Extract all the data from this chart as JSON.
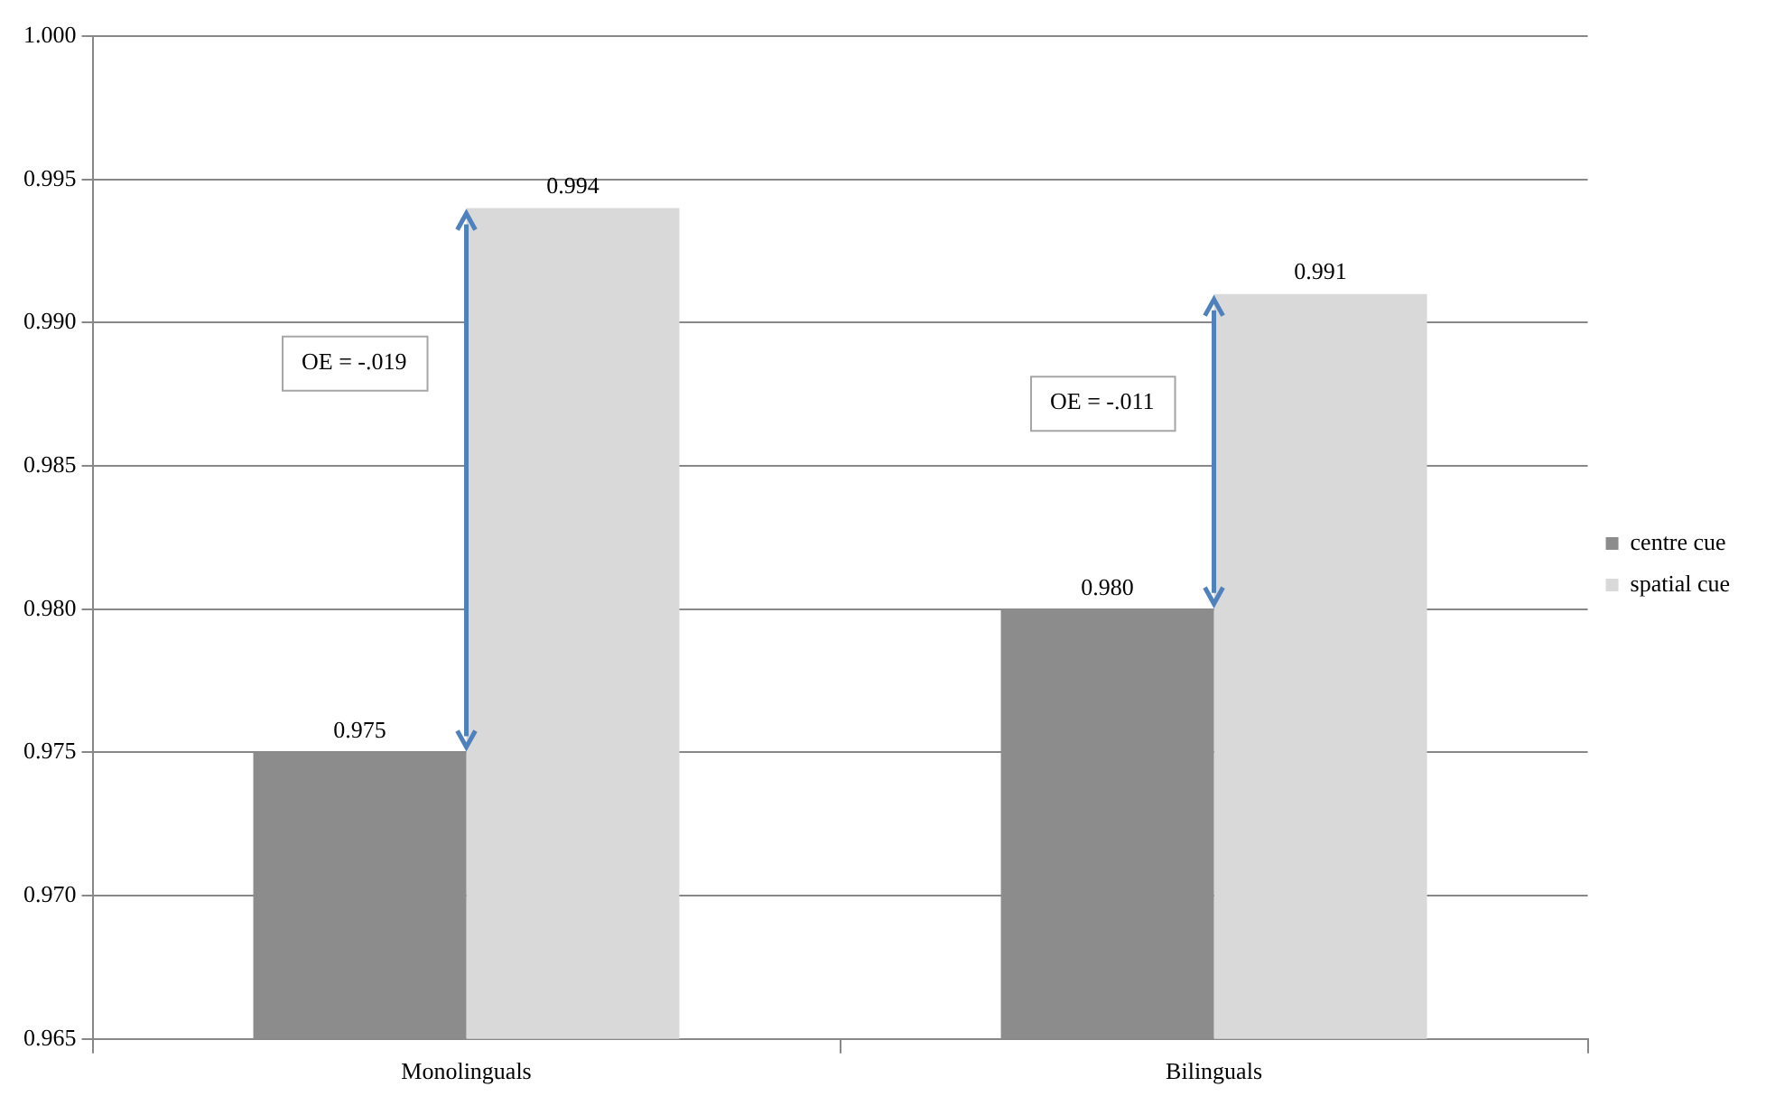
{
  "chart_data": {
    "type": "bar",
    "categories": [
      "Monolinguals",
      "Bilinguals"
    ],
    "series": [
      {
        "name": "centre cue",
        "color": "#8c8c8c",
        "values": [
          0.975,
          0.98
        ],
        "value_labels": [
          "0.975",
          "0.980"
        ]
      },
      {
        "name": "spatial cue",
        "color": "#d9d9d9",
        "values": [
          0.994,
          0.991
        ],
        "value_labels": [
          "0.994",
          "0.991"
        ]
      }
    ],
    "ylim": [
      0.965,
      1.0
    ],
    "yticks": [
      0.965,
      {
        "value": 0.97,
        "label": "0.970"
      },
      0.975,
      {
        "value": 0.98,
        "label": "0.980"
      },
      0.985,
      {
        "value": 0.99,
        "label": "0.990"
      },
      0.995,
      {
        "value": 1.0,
        "label": "1.000"
      }
    ],
    "grid": "y",
    "legend": "right",
    "annotations": [
      {
        "text": "OE = -.019",
        "x": "Monolinguals",
        "y": 0.9886
      },
      {
        "text": "OE = -.011",
        "x": "Bilinguals",
        "y": 0.9872
      }
    ]
  }
}
